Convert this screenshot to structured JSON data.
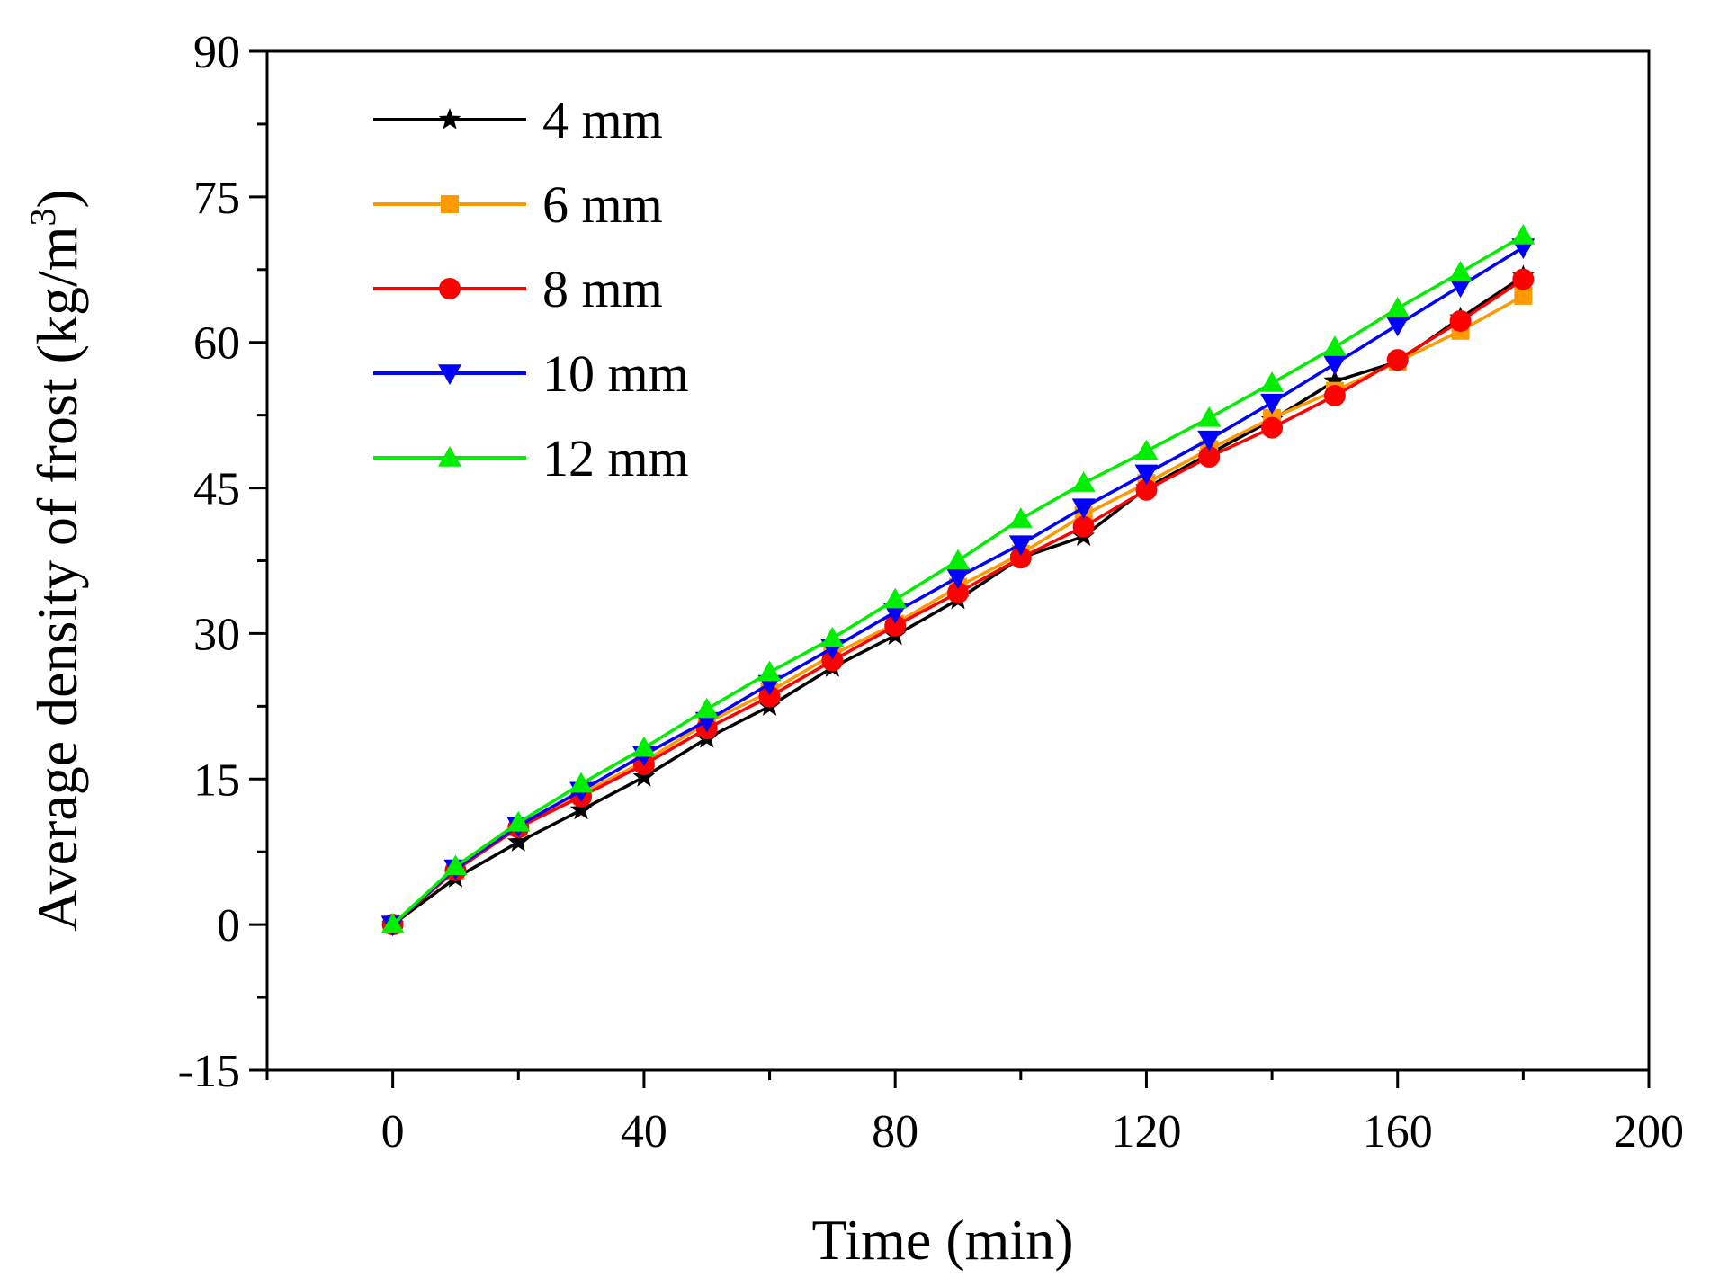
{
  "chart_data": {
    "type": "line",
    "title": "",
    "xlabel": "Time (min)",
    "ylabel": "Average density of frost (kg/m",
    "ylabel_superscript": "3",
    "ylabel_close": ")",
    "xlim": [
      -20,
      200
    ],
    "ylim": [
      -15,
      90
    ],
    "xticks": [
      0,
      40,
      80,
      120,
      160,
      200
    ],
    "yticks": [
      -15,
      0,
      15,
      30,
      45,
      60,
      75,
      90
    ],
    "grid": false,
    "legend_position": "top-left",
    "x": [
      0,
      10,
      20,
      30,
      40,
      50,
      60,
      70,
      80,
      90,
      100,
      110,
      120,
      130,
      140,
      150,
      160,
      170,
      180
    ],
    "series": [
      {
        "name": "4 mm",
        "color": "#000000",
        "marker": "star",
        "values": [
          0,
          4.8,
          8.5,
          11.8,
          15.2,
          19.2,
          22.5,
          26.5,
          29.8,
          33.5,
          37.8,
          40.0,
          45.0,
          48.5,
          52.0,
          56.0,
          58.0,
          62.5,
          66.8
        ]
      },
      {
        "name": "6 mm",
        "color": "#ff9900",
        "marker": "square",
        "values": [
          0,
          5.6,
          10.0,
          13.5,
          16.8,
          20.8,
          24.0,
          27.8,
          31.0,
          34.8,
          38.2,
          42.2,
          45.5,
          49.0,
          52.2,
          55.0,
          58.0,
          61.2,
          64.8
        ]
      },
      {
        "name": "8 mm",
        "color": "#ff0000",
        "marker": "circle",
        "values": [
          0,
          5.6,
          10.0,
          13.2,
          16.5,
          20.2,
          23.5,
          27.2,
          30.8,
          34.2,
          37.8,
          41.0,
          44.8,
          48.2,
          51.2,
          54.5,
          58.2,
          62.2,
          66.5
        ]
      },
      {
        "name": "10 mm",
        "color": "#0000ff",
        "marker": "triangle-down",
        "values": [
          0,
          5.8,
          10.2,
          13.8,
          17.5,
          21.0,
          24.8,
          28.5,
          32.2,
          35.8,
          39.2,
          43.0,
          46.5,
          50.0,
          53.8,
          57.8,
          61.8,
          65.8,
          69.8
        ]
      },
      {
        "name": "12 mm",
        "color": "#00ee00",
        "marker": "triangle-up",
        "values": [
          0,
          6.0,
          10.5,
          14.5,
          18.2,
          22.2,
          26.0,
          29.5,
          33.5,
          37.5,
          41.8,
          45.5,
          48.8,
          52.2,
          55.8,
          59.5,
          63.5,
          67.2,
          71.0
        ]
      }
    ]
  }
}
